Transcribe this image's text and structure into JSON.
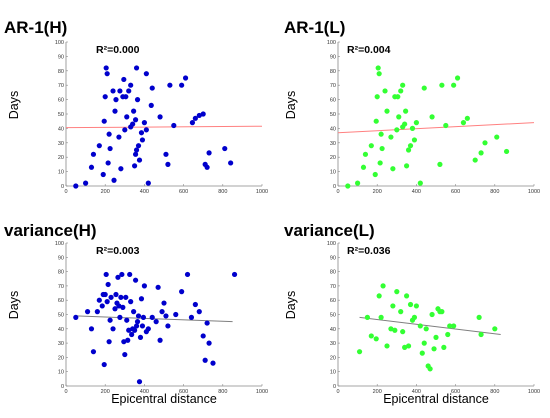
{
  "chart_data": [
    {
      "type": "scatter",
      "title": "AR-1(H)",
      "annotation": "R²=0.000",
      "xlabel": "",
      "ylabel": "Days",
      "xlim": [
        0,
        1000
      ],
      "ylim": [
        0,
        100
      ],
      "xticks": [
        0,
        200,
        400,
        600,
        800,
        1000
      ],
      "yticks": [
        0,
        10,
        20,
        30,
        40,
        50,
        60,
        70,
        80,
        90,
        100
      ],
      "point_color": "#0000cc",
      "trend_color": "#ff8080",
      "trend": [
        [
          0,
          40.5
        ],
        [
          1000,
          41.5
        ]
      ],
      "points": [
        [
          50,
          0
        ],
        [
          100,
          2
        ],
        [
          130,
          13
        ],
        [
          140,
          22
        ],
        [
          170,
          28
        ],
        [
          190,
          8
        ],
        [
          195,
          45
        ],
        [
          200,
          62
        ],
        [
          205,
          82
        ],
        [
          210,
          78
        ],
        [
          215,
          16
        ],
        [
          220,
          36
        ],
        [
          225,
          26
        ],
        [
          240,
          66
        ],
        [
          245,
          4
        ],
        [
          250,
          52
        ],
        [
          255,
          60
        ],
        [
          270,
          34
        ],
        [
          275,
          66
        ],
        [
          280,
          12
        ],
        [
          290,
          62
        ],
        [
          295,
          74
        ],
        [
          300,
          39
        ],
        [
          305,
          62
        ],
        [
          310,
          48
        ],
        [
          320,
          66
        ],
        [
          330,
          70
        ],
        [
          330,
          41
        ],
        [
          340,
          43
        ],
        [
          345,
          52
        ],
        [
          350,
          14
        ],
        [
          355,
          22
        ],
        [
          355,
          46
        ],
        [
          360,
          25
        ],
        [
          360,
          82
        ],
        [
          365,
          60
        ],
        [
          370,
          28
        ],
        [
          375,
          18
        ],
        [
          385,
          37
        ],
        [
          390,
          32
        ],
        [
          400,
          44
        ],
        [
          410,
          39
        ],
        [
          410,
          78
        ],
        [
          420,
          2
        ],
        [
          435,
          56
        ],
        [
          440,
          68
        ],
        [
          480,
          48
        ],
        [
          510,
          22
        ],
        [
          520,
          15
        ],
        [
          530,
          70
        ],
        [
          550,
          42
        ],
        [
          590,
          70
        ],
        [
          610,
          75
        ],
        [
          645,
          44
        ],
        [
          660,
          47
        ],
        [
          680,
          49
        ],
        [
          700,
          50
        ],
        [
          710,
          15
        ],
        [
          720,
          13
        ],
        [
          730,
          23
        ],
        [
          810,
          26
        ],
        [
          840,
          16
        ]
      ]
    },
    {
      "type": "scatter",
      "title": "AR-1(L)",
      "annotation": "R²=0.004",
      "xlabel": "",
      "ylabel": "Days",
      "xlim": [
        0,
        1000
      ],
      "ylim": [
        0,
        100
      ],
      "xticks": [
        0,
        200,
        400,
        600,
        800,
        1000
      ],
      "yticks": [
        0,
        10,
        20,
        30,
        40,
        50,
        60,
        70,
        80,
        90,
        100
      ],
      "point_color": "#33ff33",
      "trend_color": "#ff8080",
      "trend": [
        [
          0,
          37
        ],
        [
          1000,
          44
        ]
      ],
      "points": [
        [
          50,
          0
        ],
        [
          100,
          2
        ],
        [
          130,
          13
        ],
        [
          140,
          22
        ],
        [
          170,
          28
        ],
        [
          190,
          8
        ],
        [
          195,
          45
        ],
        [
          200,
          62
        ],
        [
          205,
          82
        ],
        [
          210,
          78
        ],
        [
          215,
          16
        ],
        [
          220,
          36
        ],
        [
          225,
          26
        ],
        [
          240,
          66
        ],
        [
          250,
          52
        ],
        [
          270,
          34
        ],
        [
          280,
          12
        ],
        [
          290,
          62
        ],
        [
          300,
          39
        ],
        [
          305,
          62
        ],
        [
          310,
          48
        ],
        [
          320,
          66
        ],
        [
          330,
          70
        ],
        [
          330,
          41
        ],
        [
          340,
          43
        ],
        [
          345,
          52
        ],
        [
          350,
          14
        ],
        [
          360,
          25
        ],
        [
          370,
          28
        ],
        [
          380,
          40
        ],
        [
          390,
          32
        ],
        [
          400,
          44
        ],
        [
          420,
          2
        ],
        [
          440,
          68
        ],
        [
          480,
          48
        ],
        [
          520,
          15
        ],
        [
          530,
          70
        ],
        [
          550,
          42
        ],
        [
          590,
          70
        ],
        [
          610,
          75
        ],
        [
          640,
          44
        ],
        [
          660,
          47
        ],
        [
          700,
          18
        ],
        [
          730,
          23
        ],
        [
          750,
          30
        ],
        [
          810,
          34
        ],
        [
          860,
          24
        ]
      ]
    },
    {
      "type": "scatter",
      "title": "variance(H)",
      "annotation": "R²=0.003",
      "xlabel": "Epicentral distance",
      "ylabel": "Days",
      "xlim": [
        0,
        1000
      ],
      "ylim": [
        0,
        100
      ],
      "xticks": [
        0,
        200,
        400,
        600,
        800,
        1000
      ],
      "yticks": [
        0,
        10,
        20,
        30,
        40,
        50,
        60,
        70,
        80,
        90,
        100
      ],
      "point_color": "#0000cc",
      "trend_color": "#7f7f7f",
      "trend": [
        [
          50,
          49
        ],
        [
          850,
          45
        ]
      ],
      "points": [
        [
          50,
          48
        ],
        [
          110,
          52
        ],
        [
          130,
          40
        ],
        [
          140,
          24
        ],
        [
          160,
          52
        ],
        [
          170,
          60
        ],
        [
          185,
          56
        ],
        [
          190,
          64
        ],
        [
          195,
          15
        ],
        [
          200,
          64
        ],
        [
          205,
          78
        ],
        [
          210,
          59
        ],
        [
          215,
          71
        ],
        [
          220,
          31
        ],
        [
          225,
          46
        ],
        [
          230,
          62
        ],
        [
          240,
          40
        ],
        [
          250,
          54
        ],
        [
          255,
          64
        ],
        [
          260,
          58
        ],
        [
          265,
          76
        ],
        [
          270,
          56
        ],
        [
          275,
          48
        ],
        [
          280,
          62
        ],
        [
          285,
          78
        ],
        [
          290,
          55
        ],
        [
          295,
          31
        ],
        [
          300,
          22
        ],
        [
          305,
          62
        ],
        [
          310,
          46
        ],
        [
          315,
          32
        ],
        [
          320,
          39
        ],
        [
          325,
          78
        ],
        [
          330,
          59
        ],
        [
          335,
          36
        ],
        [
          340,
          40
        ],
        [
          345,
          52
        ],
        [
          350,
          39
        ],
        [
          355,
          74
        ],
        [
          360,
          42
        ],
        [
          365,
          45
        ],
        [
          370,
          49
        ],
        [
          375,
          3
        ],
        [
          380,
          34
        ],
        [
          385,
          61
        ],
        [
          390,
          42
        ],
        [
          395,
          48
        ],
        [
          400,
          70
        ],
        [
          410,
          38
        ],
        [
          420,
          40
        ],
        [
          440,
          48
        ],
        [
          460,
          45
        ],
        [
          470,
          69
        ],
        [
          480,
          32
        ],
        [
          490,
          52
        ],
        [
          500,
          58
        ],
        [
          510,
          49
        ],
        [
          520,
          42
        ],
        [
          560,
          50
        ],
        [
          590,
          66
        ],
        [
          620,
          78
        ],
        [
          640,
          48
        ],
        [
          660,
          57
        ],
        [
          680,
          52
        ],
        [
          700,
          35
        ],
        [
          710,
          18
        ],
        [
          720,
          44
        ],
        [
          730,
          30
        ],
        [
          750,
          16
        ],
        [
          860,
          78
        ]
      ]
    },
    {
      "type": "scatter",
      "title": "variance(L)",
      "annotation": "R²=0.036",
      "xlabel": "Epicentral distance",
      "ylabel": "Days",
      "xlim": [
        0,
        1000
      ],
      "ylim": [
        0,
        100
      ],
      "xticks": [
        0,
        200,
        400,
        600,
        800,
        1000
      ],
      "yticks": [
        0,
        10,
        20,
        30,
        40,
        50,
        60,
        70,
        80,
        90,
        100
      ],
      "point_color": "#33ff33",
      "trend_color": "#7f7f7f",
      "trend": [
        [
          110,
          48
        ],
        [
          830,
          36
        ]
      ],
      "points": [
        [
          110,
          24
        ],
        [
          150,
          48
        ],
        [
          170,
          35
        ],
        [
          195,
          33
        ],
        [
          210,
          63
        ],
        [
          220,
          48
        ],
        [
          230,
          70
        ],
        [
          250,
          28
        ],
        [
          270,
          40
        ],
        [
          280,
          56
        ],
        [
          290,
          39
        ],
        [
          300,
          66
        ],
        [
          320,
          52
        ],
        [
          330,
          38
        ],
        [
          340,
          27
        ],
        [
          350,
          63
        ],
        [
          360,
          28
        ],
        [
          370,
          57
        ],
        [
          380,
          46
        ],
        [
          390,
          48
        ],
        [
          400,
          56
        ],
        [
          420,
          42
        ],
        [
          430,
          23
        ],
        [
          440,
          30
        ],
        [
          450,
          40
        ],
        [
          460,
          14
        ],
        [
          470,
          12
        ],
        [
          480,
          50
        ],
        [
          490,
          26
        ],
        [
          500,
          34
        ],
        [
          510,
          54
        ],
        [
          520,
          52
        ],
        [
          530,
          52
        ],
        [
          540,
          27
        ],
        [
          560,
          36
        ],
        [
          570,
          42
        ],
        [
          590,
          42
        ],
        [
          720,
          48
        ],
        [
          730,
          36
        ],
        [
          800,
          40
        ]
      ]
    }
  ]
}
